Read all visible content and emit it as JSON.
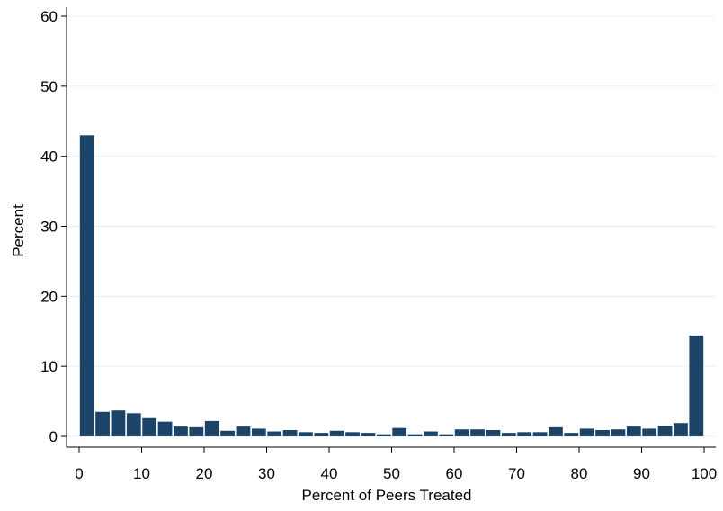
{
  "chart_data": {
    "type": "bar",
    "title": "",
    "xlabel": "Percent of Peers Treated",
    "ylabel": "Percent",
    "xlim": [
      0,
      100
    ],
    "ylim": [
      0,
      60
    ],
    "x_ticks": [
      "0",
      "10",
      "20",
      "30",
      "40",
      "50",
      "60",
      "70",
      "80",
      "90",
      "100"
    ],
    "y_ticks": [
      "0",
      "10",
      "20",
      "30",
      "40",
      "50",
      "60"
    ],
    "bin_width": 2.5,
    "grid": "horizontal",
    "legend": "none",
    "bar_color": "#1c4468",
    "bins": [
      {
        "x": 1.25,
        "value": 43.0
      },
      {
        "x": 3.75,
        "value": 3.5
      },
      {
        "x": 6.25,
        "value": 3.7
      },
      {
        "x": 8.75,
        "value": 3.3
      },
      {
        "x": 11.25,
        "value": 2.6
      },
      {
        "x": 13.75,
        "value": 2.1
      },
      {
        "x": 16.25,
        "value": 1.4
      },
      {
        "x": 18.75,
        "value": 1.3
      },
      {
        "x": 21.25,
        "value": 2.2
      },
      {
        "x": 23.75,
        "value": 0.8
      },
      {
        "x": 26.25,
        "value": 1.4
      },
      {
        "x": 28.75,
        "value": 1.1
      },
      {
        "x": 31.25,
        "value": 0.7
      },
      {
        "x": 33.75,
        "value": 0.9
      },
      {
        "x": 36.25,
        "value": 0.6
      },
      {
        "x": 38.75,
        "value": 0.5
      },
      {
        "x": 41.25,
        "value": 0.8
      },
      {
        "x": 43.75,
        "value": 0.6
      },
      {
        "x": 46.25,
        "value": 0.5
      },
      {
        "x": 48.75,
        "value": 0.3
      },
      {
        "x": 51.25,
        "value": 1.2
      },
      {
        "x": 53.75,
        "value": 0.3
      },
      {
        "x": 56.25,
        "value": 0.7
      },
      {
        "x": 58.75,
        "value": 0.3
      },
      {
        "x": 61.25,
        "value": 1.0
      },
      {
        "x": 63.75,
        "value": 1.0
      },
      {
        "x": 66.25,
        "value": 0.9
      },
      {
        "x": 68.75,
        "value": 0.5
      },
      {
        "x": 71.25,
        "value": 0.6
      },
      {
        "x": 73.75,
        "value": 0.6
      },
      {
        "x": 76.25,
        "value": 1.3
      },
      {
        "x": 78.75,
        "value": 0.5
      },
      {
        "x": 81.25,
        "value": 1.1
      },
      {
        "x": 83.75,
        "value": 0.9
      },
      {
        "x": 86.25,
        "value": 1.0
      },
      {
        "x": 88.75,
        "value": 1.4
      },
      {
        "x": 91.25,
        "value": 1.1
      },
      {
        "x": 93.75,
        "value": 1.5
      },
      {
        "x": 96.25,
        "value": 1.9
      },
      {
        "x": 98.75,
        "value": 14.4
      }
    ]
  }
}
